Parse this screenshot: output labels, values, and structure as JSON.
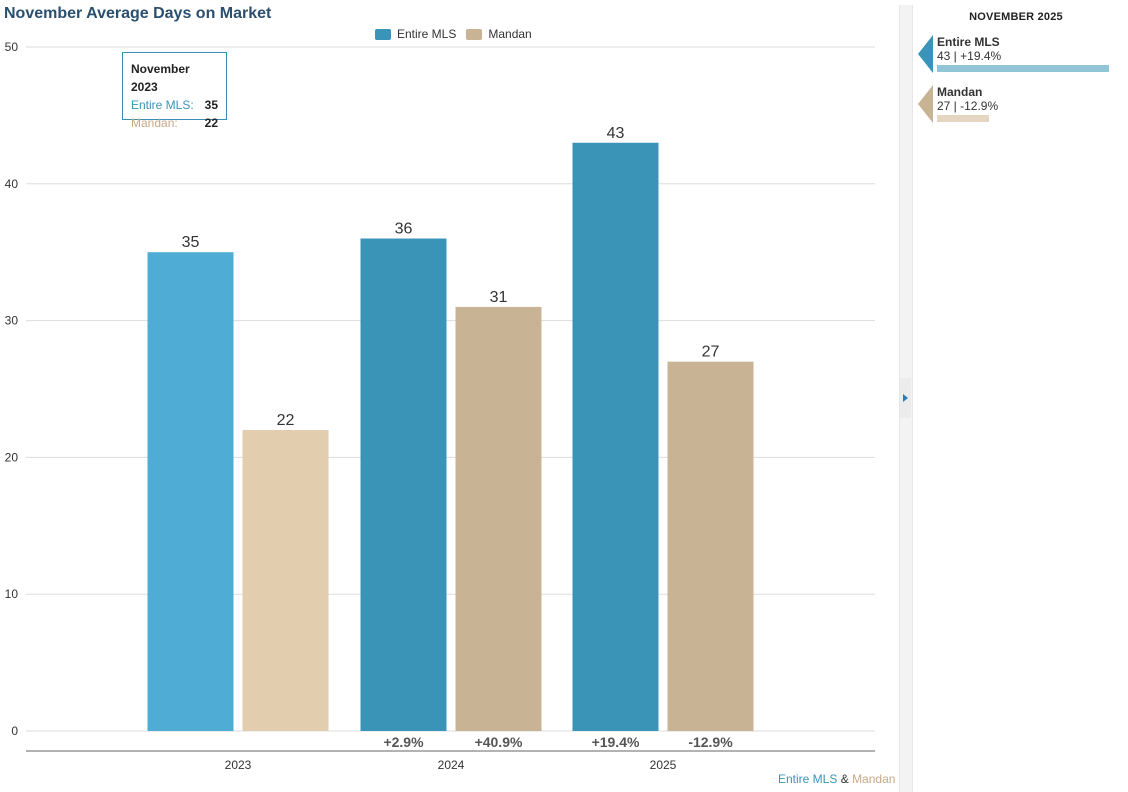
{
  "colors": {
    "entire_2023": "#4facd4",
    "entire": "#3a94b8",
    "mandan_2023": "#e2cdaf",
    "mandan": "#c8b394",
    "entire_light": "#92c5d8",
    "mandan_light": "#e4d6c1",
    "grid": "#dddddd",
    "axis": "#666666",
    "text": "#333333"
  },
  "legend": {
    "entire_label": "Entire MLS",
    "mandan_label": "Mandan"
  },
  "tooltip": {
    "title": "November 2023",
    "entire_label": "Entire MLS:",
    "entire_value": "35",
    "mandan_label": "Mandan:",
    "mandan_value": "22"
  },
  "footer": {
    "entire": "Entire MLS",
    "amp": "&",
    "mandan": "Mandan"
  },
  "side_panel": {
    "heading": "NOVEMBER 2025",
    "entire": {
      "name": "Entire MLS",
      "value": "43 | +19.4%",
      "magnitude": 43
    },
    "mandan": {
      "name": "Mandan",
      "value": "27 | -12.9%",
      "magnitude": 27
    }
  },
  "chart_data": {
    "type": "bar",
    "title": "November Average Days on Market",
    "categories": [
      "2023",
      "2024",
      "2025"
    ],
    "series": [
      {
        "name": "Entire MLS",
        "values": [
          35,
          36,
          43
        ],
        "changes": [
          "",
          "+2.9%",
          "+19.4%"
        ]
      },
      {
        "name": "Mandan",
        "values": [
          22,
          31,
          27
        ],
        "changes": [
          "",
          "+40.9%",
          "-12.9%"
        ]
      }
    ],
    "yticks": [
      0,
      10,
      20,
      30,
      40,
      50
    ],
    "ylim": [
      0,
      50
    ],
    "xlabel": "",
    "ylabel": "",
    "grid": true,
    "legend": "top-center"
  }
}
